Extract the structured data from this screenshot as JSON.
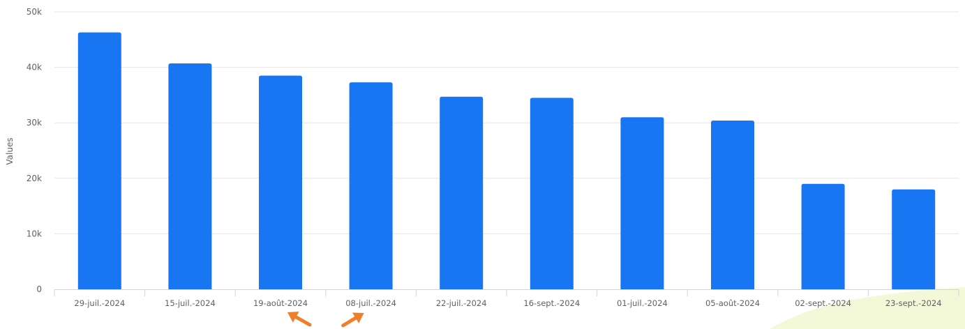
{
  "colors": {
    "bar": "#1976f2",
    "grid": "#e6e6e6",
    "axis": "#cfd6e0",
    "tick_text": "#606060",
    "title_text": "#333333",
    "annotation_arrow": "#f07f2c",
    "bg_blob": "#f3f8d8"
  },
  "chart_data": {
    "type": "bar",
    "title": "",
    "xlabel": "",
    "ylabel": "Values",
    "ylim": [
      0,
      50000
    ],
    "yticks": [
      0,
      10000,
      20000,
      30000,
      40000,
      50000
    ],
    "ytick_labels": [
      "0",
      "10k",
      "20k",
      "30k",
      "40k",
      "50k"
    ],
    "grid": true,
    "legend": "none",
    "categories": [
      "29-juil.-2024",
      "15-juil.-2024",
      "19-août-2024",
      "08-juil.-2024",
      "22-juil.-2024",
      "16-sept.-2024",
      "01-juil.-2024",
      "05-août-2024",
      "02-sept.-2024",
      "23-sept.-2024"
    ],
    "values": [
      46300,
      40700,
      38500,
      37300,
      34700,
      34500,
      31000,
      30400,
      19000,
      18000
    ],
    "annotations": [
      {
        "type": "arrow",
        "target": "19-août-2024"
      },
      {
        "type": "arrow",
        "target": "08-juil.-2024"
      }
    ]
  }
}
